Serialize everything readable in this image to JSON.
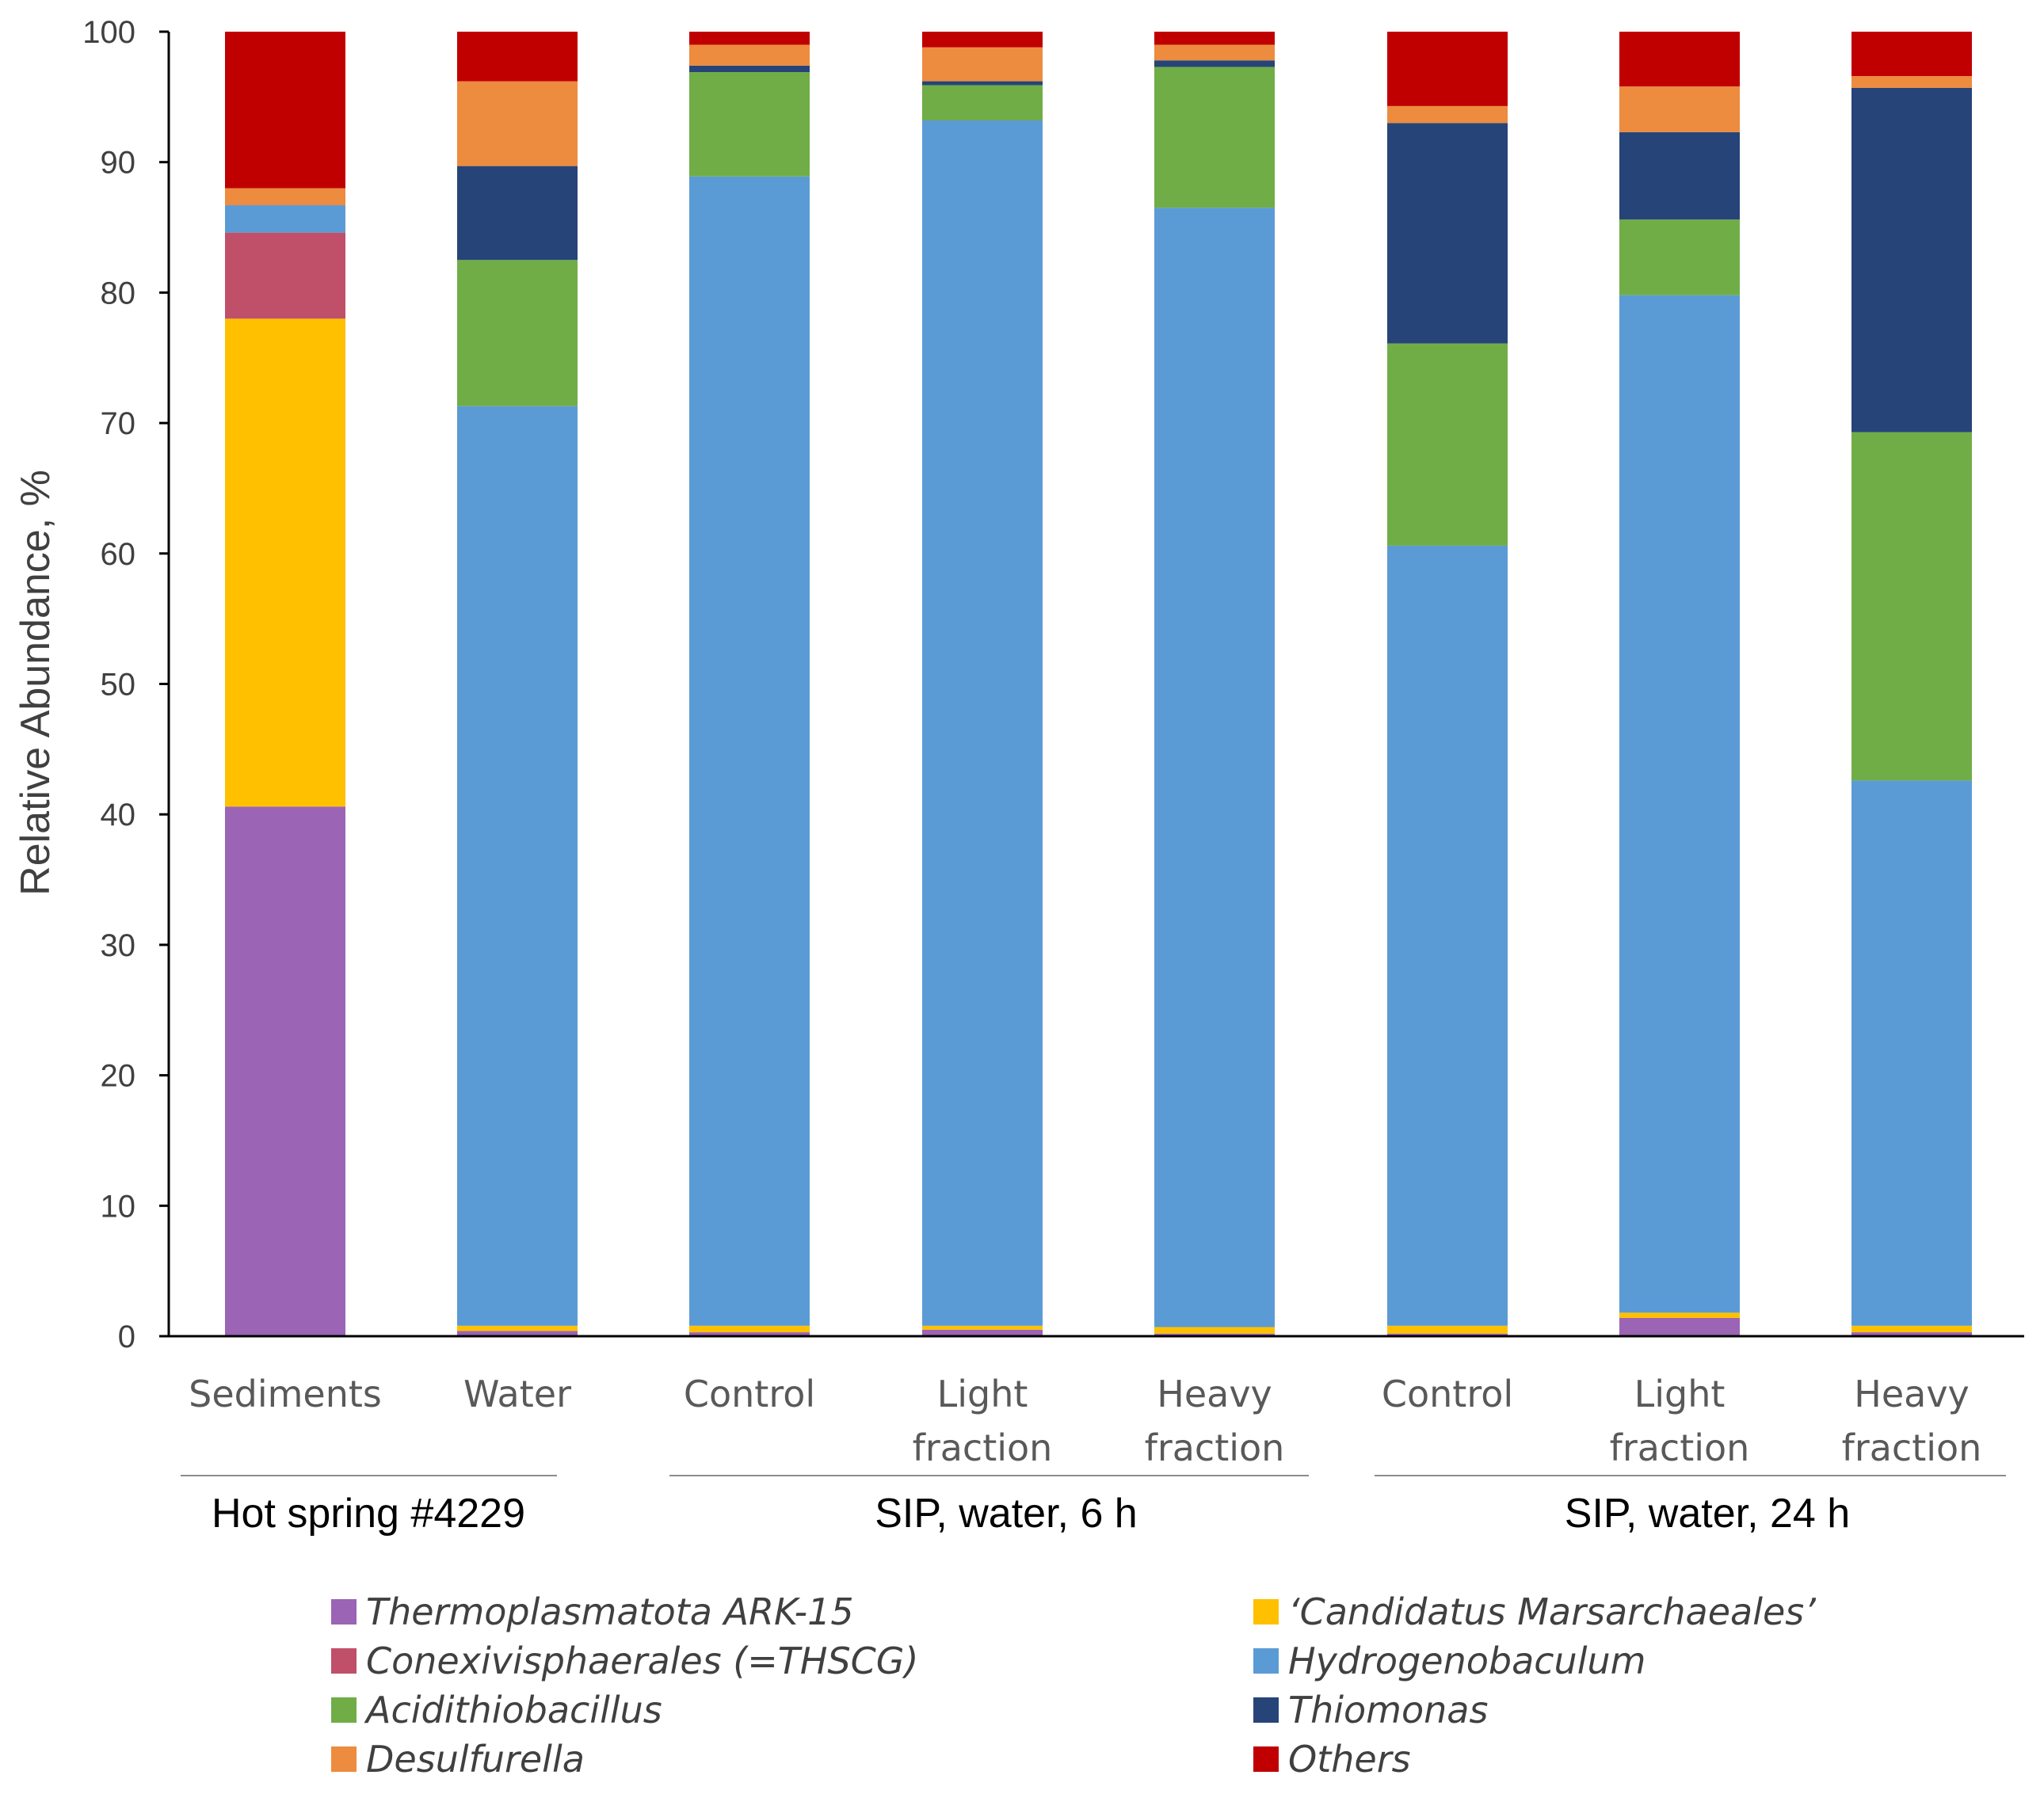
{
  "chart_data": {
    "type": "bar",
    "stacked": true,
    "title": "",
    "xlabel": "",
    "ylabel": "Relative Abundance, %",
    "ylim": [
      0,
      100
    ],
    "yticks": [
      "0",
      "10",
      "20",
      "30",
      "40",
      "50",
      "60",
      "70",
      "80",
      "90",
      "100"
    ],
    "categories": [
      "Sediments",
      "Water",
      "Control",
      "Light fraction",
      "Heavy fraction",
      "Control",
      "Light fraction",
      "Heavy fraction"
    ],
    "category_lines": [
      [
        "Sediments"
      ],
      [
        "Water"
      ],
      [
        "Control"
      ],
      [
        "Light",
        "fraction"
      ],
      [
        "Heavy",
        "fraction"
      ],
      [
        "Control"
      ],
      [
        "Light",
        "fraction"
      ],
      [
        "Heavy",
        "fraction"
      ]
    ],
    "groups": [
      {
        "label": "Hot spring #4229",
        "categories": [
          0,
          1
        ]
      },
      {
        "label": "SIP, water, 6 h",
        "categories": [
          2,
          3,
          4
        ]
      },
      {
        "label": "SIP, water, 24 h",
        "categories": [
          5,
          6,
          7
        ]
      }
    ],
    "series": [
      {
        "name": "Thermoplasmatota ARK-15",
        "color": "#9B64B4",
        "values": [
          40.6,
          0.4,
          0.3,
          0.5,
          0.2,
          0.2,
          1.4,
          0.3
        ]
      },
      {
        "name": "‘Candidatus Marsarchaeales’",
        "color": "#FFC000",
        "values": [
          37.4,
          0.4,
          0.5,
          0.3,
          0.5,
          0.6,
          0.4,
          0.5
        ]
      },
      {
        "name": "Conexivisphaerales (=THSCG)",
        "color": "#C0506A",
        "values": [
          6.6,
          0.0,
          0.0,
          0.0,
          0.0,
          0.0,
          0.0,
          0.0
        ]
      },
      {
        "name": "Hydrogenobaculum",
        "color": "#5B9BD5",
        "values": [
          2.1,
          70.5,
          88.1,
          92.4,
          85.8,
          59.8,
          78.0,
          41.8
        ]
      },
      {
        "name": "Acidithiobacillus",
        "color": "#70AD47",
        "values": [
          0.0,
          11.2,
          8.0,
          2.7,
          10.8,
          15.5,
          5.8,
          26.7
        ]
      },
      {
        "name": "Thiomonas",
        "color": "#264478",
        "values": [
          0.0,
          7.2,
          0.5,
          0.3,
          0.5,
          16.9,
          6.7,
          26.4
        ]
      },
      {
        "name": "Desulfurella",
        "color": "#ED8B3F",
        "values": [
          1.3,
          6.5,
          1.6,
          2.6,
          1.2,
          1.3,
          3.5,
          0.9
        ]
      },
      {
        "name": "Others",
        "color": "#C00000",
        "values": [
          12.0,
          3.8,
          1.0,
          1.2,
          1.0,
          5.7,
          4.2,
          3.4
        ]
      }
    ],
    "legend": {
      "placement": "bottom",
      "columns": [
        [
          "Thermoplasmatota ARK-15",
          "Conexivisphaerales (=THSCG)",
          "Acidithiobacillus",
          "Desulfurella"
        ],
        [
          "‘Candidatus Marsarchaeales’",
          "Hydrogenobaculum",
          "Thiomonas",
          "Others"
        ]
      ]
    },
    "grid": false
  }
}
